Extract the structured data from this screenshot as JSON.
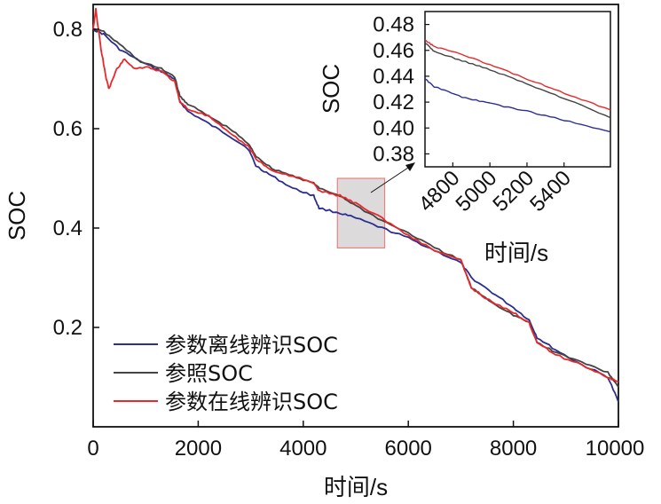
{
  "chart_data": [
    {
      "type": "line",
      "title": "",
      "xlabel": "时间/s",
      "ylabel": "SOC",
      "xlim": [
        0,
        10000
      ],
      "ylim": [
        0,
        0.85
      ],
      "xticks": [
        0,
        2000,
        4000,
        6000,
        8000,
        10000
      ],
      "xtick_labels": [
        "0",
        "2000",
        "4000",
        "6000",
        "8000",
        "10000"
      ],
      "yticks": [
        0.2,
        0.4,
        0.6,
        0.8
      ],
      "ytick_labels": [
        "0.2",
        "0.4",
        "0.6",
        "0.8"
      ],
      "legend_position": "bottom-left",
      "colors": {
        "offline": "#2b2f8f",
        "reference": "#444444",
        "online": "#e8282b",
        "zoom_box": "#d6d3d5",
        "zoom_border": "#e88080"
      },
      "zoom_region": {
        "x": [
          4650,
          5550
        ],
        "y": [
          0.36,
          0.5
        ]
      },
      "series": [
        {
          "name": "参数离线辨识SOC",
          "color": "#2b2f8f",
          "x": [
            0,
            200,
            500,
            900,
            1300,
            1550,
            1650,
            1800,
            2200,
            2600,
            2950,
            3100,
            3400,
            3800,
            4200,
            4300,
            4700,
            5000,
            5500,
            6000,
            6500,
            7000,
            7200,
            7600,
            8000,
            8300,
            8450,
            8800,
            9300,
            9800,
            10000
          ],
          "y": [
            0.8,
            0.79,
            0.76,
            0.735,
            0.715,
            0.7,
            0.655,
            0.635,
            0.61,
            0.585,
            0.56,
            0.525,
            0.505,
            0.48,
            0.465,
            0.44,
            0.43,
            0.42,
            0.4,
            0.38,
            0.355,
            0.33,
            0.3,
            0.27,
            0.24,
            0.215,
            0.18,
            0.155,
            0.125,
            0.1,
            0.05
          ]
        },
        {
          "name": "参照SOC",
          "color": "#444444",
          "x": [
            0,
            200,
            500,
            900,
            1300,
            1550,
            1650,
            1800,
            2200,
            2600,
            2950,
            3100,
            3400,
            3800,
            4200,
            4300,
            4700,
            5000,
            5500,
            6000,
            6500,
            7000,
            7200,
            7600,
            8000,
            8300,
            8450,
            8800,
            9300,
            9800,
            10000
          ],
          "y": [
            0.8,
            0.795,
            0.77,
            0.735,
            0.72,
            0.705,
            0.665,
            0.65,
            0.625,
            0.6,
            0.57,
            0.545,
            0.52,
            0.505,
            0.49,
            0.48,
            0.465,
            0.445,
            0.415,
            0.39,
            0.36,
            0.335,
            0.28,
            0.25,
            0.225,
            0.21,
            0.17,
            0.15,
            0.13,
            0.11,
            0.08
          ]
        },
        {
          "name": "参数在线辨识SOC",
          "color": "#e8282b",
          "x": [
            0,
            50,
            150,
            250,
            300,
            450,
            600,
            800,
            1000,
            1300,
            1550,
            1650,
            1800,
            2200,
            2600,
            2950,
            3100,
            3400,
            3800,
            4200,
            4300,
            4700,
            5000,
            5500,
            6000,
            6500,
            7000,
            7200,
            7600,
            8000,
            8300,
            8450,
            8800,
            9300,
            9800,
            10000
          ],
          "y": [
            0.8,
            0.84,
            0.76,
            0.7,
            0.68,
            0.72,
            0.74,
            0.72,
            0.725,
            0.715,
            0.695,
            0.655,
            0.64,
            0.625,
            0.59,
            0.565,
            0.54,
            0.515,
            0.505,
            0.49,
            0.475,
            0.465,
            0.45,
            0.42,
            0.385,
            0.355,
            0.335,
            0.28,
            0.25,
            0.23,
            0.21,
            0.17,
            0.145,
            0.125,
            0.1,
            0.09
          ]
        }
      ]
    },
    {
      "type": "line",
      "title": "",
      "xlabel": "时间/s",
      "ylabel": "SOC",
      "xlim": [
        4650,
        5650
      ],
      "ylim": [
        0.37,
        0.49
      ],
      "xticks": [
        4800,
        5000,
        5200,
        5400
      ],
      "xtick_labels": [
        "4800",
        "5000",
        "5200",
        "5400"
      ],
      "yticks": [
        0.38,
        0.4,
        0.42,
        0.44,
        0.46,
        0.48
      ],
      "ytick_labels": [
        "0.38",
        "0.40",
        "0.42",
        "0.44",
        "0.46",
        "0.48"
      ],
      "series": [
        {
          "name": "参数离线辨识SOC",
          "color": "#2b2f8f",
          "x": [
            4650,
            4700,
            4850,
            5000,
            5200,
            5400,
            5650
          ],
          "y": [
            0.438,
            0.432,
            0.424,
            0.419,
            0.413,
            0.406,
            0.397
          ]
        },
        {
          "name": "参照SOC",
          "color": "#444444",
          "x": [
            4650,
            4700,
            4850,
            5000,
            5200,
            5400,
            5650
          ],
          "y": [
            0.466,
            0.459,
            0.452,
            0.445,
            0.434,
            0.423,
            0.408
          ]
        },
        {
          "name": "参数在线辨识SOC",
          "color": "#e8282b",
          "x": [
            4650,
            4700,
            4850,
            5000,
            5200,
            5400,
            5650
          ],
          "y": [
            0.468,
            0.463,
            0.457,
            0.449,
            0.438,
            0.427,
            0.414
          ]
        }
      ]
    }
  ]
}
